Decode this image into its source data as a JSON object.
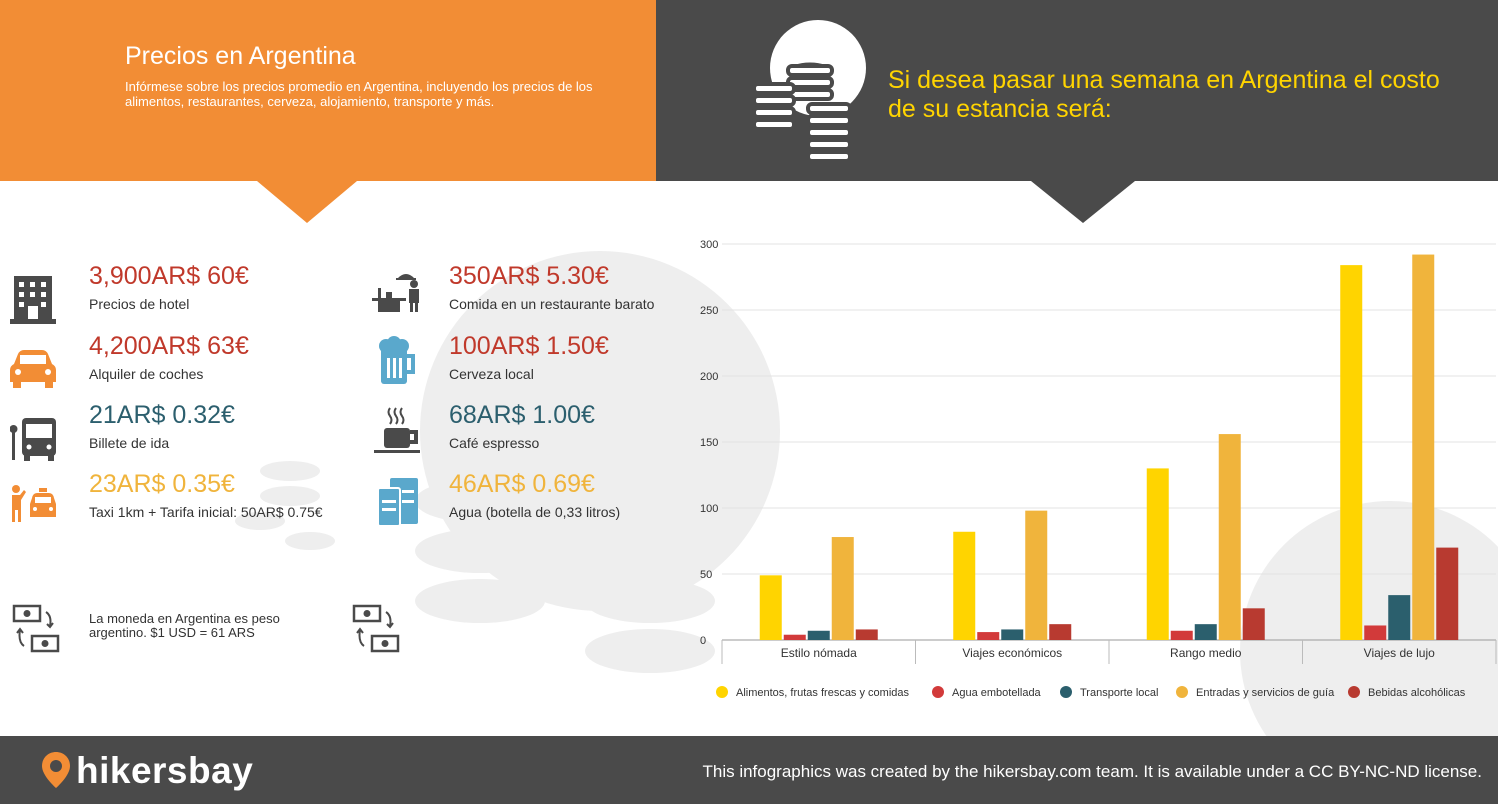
{
  "header": {
    "title": "Precios en Argentina",
    "subtitle": "Infórmese sobre los precios promedio en Argentina, incluyendo los precios de los alimentos, restaurantes, cerveza, alojamiento, transporte y más.",
    "headline": "Si desea pasar una semana en Argentina el costo de su estancia será:"
  },
  "prices": {
    "hotel": {
      "value": "3,900AR$ 60€",
      "label": "Precios de hotel",
      "icon": "hotel-icon"
    },
    "car": {
      "value": "4,200AR$ 63€",
      "label": "Alquiler de coches",
      "icon": "car-icon"
    },
    "bus": {
      "value": "21AR$ 0.32€",
      "label": "Billete de ida",
      "icon": "bus-icon"
    },
    "taxi": {
      "value": "23AR$ 0.35€",
      "label": "Taxi 1km + Tarifa inicial: 50AR$ 0.75€",
      "icon": "taxi-icon"
    },
    "meal": {
      "value": "350AR$ 5.30€",
      "label": "Comida en un restaurante barato",
      "icon": "restaurant-icon"
    },
    "beer": {
      "value": "100AR$ 1.50€",
      "label": "Cerveza local",
      "icon": "beer-icon"
    },
    "coffee": {
      "value": "68AR$ 1.00€",
      "label": "Café espresso",
      "icon": "coffee-icon"
    },
    "water": {
      "value": "46AR$ 0.69€",
      "label": "Agua (botella de 0,33 litros)",
      "icon": "water-bottle-icon"
    }
  },
  "currency_note": "La moneda en Argentina es peso argentino. $1 USD = 61 ARS",
  "colors": {
    "orange": "#f28d35",
    "dark": "#4a4a4a",
    "yellow": "#ffd400",
    "red": "#c0392b",
    "teal": "#2c5f6e",
    "gold": "#f0b43c"
  },
  "chart_data": {
    "type": "bar",
    "categories": [
      "Estilo nómada",
      "Viajes económicos",
      "Rango medio",
      "Viajes de lujo"
    ],
    "series": [
      {
        "name": "Alimentos, frutas frescas y comidas",
        "color": "#ffd400",
        "values": [
          49,
          82,
          130,
          284
        ]
      },
      {
        "name": "Agua embotellada",
        "color": "#d23a3a",
        "values": [
          4,
          6,
          7,
          11
        ]
      },
      {
        "name": "Transporte local",
        "color": "#2b5f6d",
        "values": [
          7,
          8,
          12,
          34
        ]
      },
      {
        "name": "Entradas y servicios de guía",
        "color": "#f0b43c",
        "values": [
          78,
          98,
          156,
          292
        ]
      },
      {
        "name": "Bebidas alcohólicas",
        "color": "#b83a30",
        "values": [
          8,
          12,
          24,
          70
        ]
      }
    ],
    "yticks": [
      0,
      50,
      100,
      150,
      200,
      250,
      300
    ],
    "ylim": [
      0,
      300
    ],
    "grid": true,
    "legend": "bottom"
  },
  "footer": {
    "logo": "hikersbay",
    "credits": "This infographics was created by the hikersbay.com team. It is available under a CC BY-NC-ND license."
  }
}
